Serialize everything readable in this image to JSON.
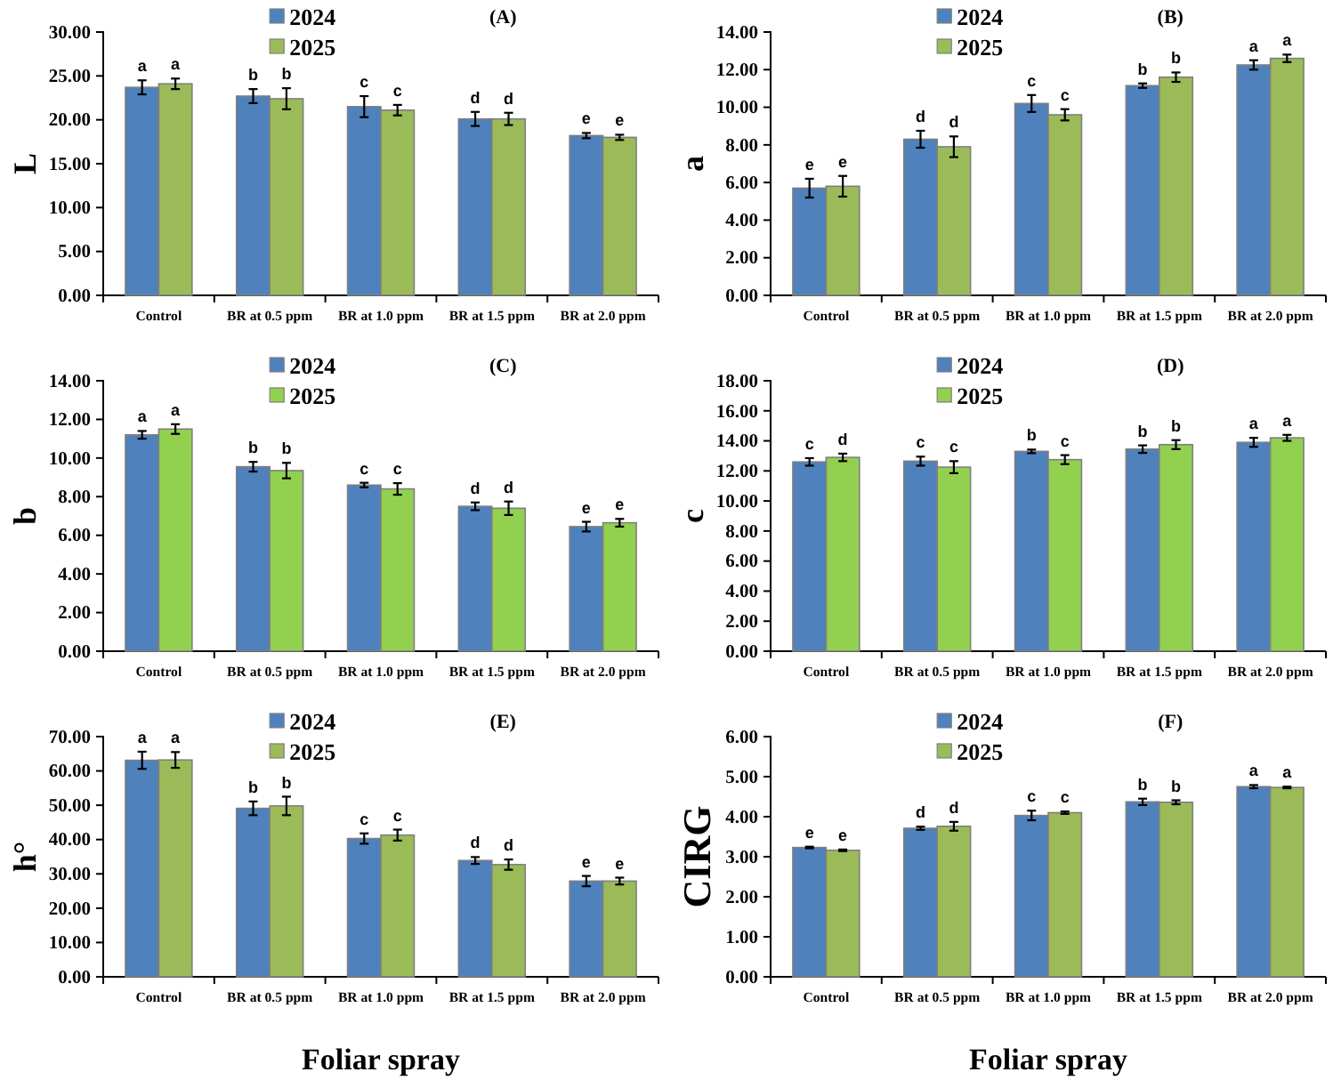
{
  "chart_data": [
    {
      "type": "bar",
      "title": "(A)",
      "ylabel": "L",
      "categories": [
        "Control",
        "BR at 0.5 ppm",
        "BR at 1.0 ppm",
        "BR at 1.5 ppm",
        "BR at 2.0 ppm"
      ],
      "ylim": [
        0,
        30
      ],
      "yticks": [
        {
          "value": 0,
          "label": "0.00"
        },
        {
          "value": 5,
          "label": "5.00"
        },
        {
          "value": 10,
          "label": "10.00"
        },
        {
          "value": 15,
          "label": "15.00"
        },
        {
          "value": 20,
          "label": "20.00"
        },
        {
          "value": 25,
          "label": "25.00"
        },
        {
          "value": 30,
          "label": "30.00"
        }
      ],
      "legend": "top",
      "grid": false,
      "series": [
        {
          "name": "2024",
          "color": "#4f81bd",
          "values": [
            23.7,
            22.7,
            21.5,
            20.1,
            18.2
          ],
          "errors": [
            0.8,
            0.8,
            1.2,
            0.8,
            0.3
          ],
          "value_labels": [
            "a",
            "b",
            "c",
            "d",
            "e"
          ]
        },
        {
          "name": "2025",
          "color": "#9bbb59",
          "values": [
            24.1,
            22.4,
            21.1,
            20.1,
            18.0
          ],
          "errors": [
            0.6,
            1.2,
            0.6,
            0.7,
            0.3
          ],
          "value_labels": [
            "a",
            "b",
            "c",
            "d",
            "e"
          ]
        }
      ]
    },
    {
      "type": "bar",
      "title": "(B)",
      "ylabel": "a",
      "categories": [
        "Control",
        "BR at 0.5 ppm",
        "BR at 1.0 ppm",
        "BR at 1.5 ppm",
        "BR at 2.0 ppm"
      ],
      "ylim": [
        0,
        14
      ],
      "yticks": [
        {
          "value": 0,
          "label": "0.00"
        },
        {
          "value": 2,
          "label": "2.00"
        },
        {
          "value": 4,
          "label": "4.00"
        },
        {
          "value": 6,
          "label": "6.00"
        },
        {
          "value": 8,
          "label": "8.00"
        },
        {
          "value": 10,
          "label": "10.00"
        },
        {
          "value": 12,
          "label": "12.00"
        },
        {
          "value": 14,
          "label": "14.00"
        }
      ],
      "legend": "top",
      "grid": false,
      "series": [
        {
          "name": "2024",
          "color": "#4f81bd",
          "values": [
            5.7,
            8.3,
            10.2,
            11.15,
            12.25
          ],
          "errors": [
            0.5,
            0.45,
            0.45,
            0.12,
            0.25
          ],
          "value_labels": [
            "e",
            "d",
            "c",
            "b",
            "a"
          ]
        },
        {
          "name": "2025",
          "color": "#9bbb59",
          "values": [
            5.8,
            7.9,
            9.6,
            11.6,
            12.6
          ],
          "errors": [
            0.55,
            0.55,
            0.3,
            0.25,
            0.2
          ],
          "value_labels": [
            "e",
            "d",
            "c",
            "b",
            "a"
          ]
        }
      ]
    },
    {
      "type": "bar",
      "title": "(C)",
      "ylabel": "b",
      "categories": [
        "Control",
        "BR at 0.5 ppm",
        "BR at 1.0 ppm",
        "BR at 1.5 ppm",
        "BR at 2.0 ppm"
      ],
      "ylim": [
        0,
        14
      ],
      "yticks": [
        {
          "value": 0,
          "label": "0.00"
        },
        {
          "value": 2,
          "label": "2.00"
        },
        {
          "value": 4,
          "label": "4.00"
        },
        {
          "value": 6,
          "label": "6.00"
        },
        {
          "value": 8,
          "label": "8.00"
        },
        {
          "value": 10,
          "label": "10.00"
        },
        {
          "value": 12,
          "label": "12.00"
        },
        {
          "value": 14,
          "label": "14.00"
        }
      ],
      "legend": "top",
      "grid": false,
      "series": [
        {
          "name": "2024",
          "color": "#4f81bd",
          "values": [
            11.2,
            9.55,
            8.6,
            7.5,
            6.45
          ],
          "errors": [
            0.2,
            0.25,
            0.12,
            0.2,
            0.25
          ],
          "value_labels": [
            "a",
            "b",
            "c",
            "d",
            "e"
          ]
        },
        {
          "name": "2025",
          "color": "#92d050",
          "values": [
            11.5,
            9.35,
            8.4,
            7.4,
            6.65
          ],
          "errors": [
            0.25,
            0.4,
            0.3,
            0.35,
            0.2
          ],
          "value_labels": [
            "a",
            "b",
            "c",
            "d",
            "e"
          ]
        }
      ]
    },
    {
      "type": "bar",
      "title": "(D)",
      "ylabel": "c",
      "categories": [
        "Control",
        "BR at 0.5 ppm",
        "BR at 1.0 ppm",
        "BR at 1.5 ppm",
        "BR at 2.0 ppm"
      ],
      "ylim": [
        0,
        18
      ],
      "yticks": [
        {
          "value": 0,
          "label": "0.00"
        },
        {
          "value": 2,
          "label": "2.00"
        },
        {
          "value": 4,
          "label": "4.00"
        },
        {
          "value": 6,
          "label": "6.00"
        },
        {
          "value": 8,
          "label": "8.00"
        },
        {
          "value": 10,
          "label": "10.00"
        },
        {
          "value": 12,
          "label": "12.00"
        },
        {
          "value": 14,
          "label": "14.00"
        },
        {
          "value": 16,
          "label": "16.00"
        },
        {
          "value": 18,
          "label": "18.00"
        }
      ],
      "legend": "top",
      "grid": false,
      "series": [
        {
          "name": "2024",
          "color": "#4f81bd",
          "values": [
            12.6,
            12.65,
            13.3,
            13.45,
            13.9
          ],
          "errors": [
            0.25,
            0.3,
            0.12,
            0.25,
            0.3
          ],
          "value_labels": [
            "c",
            "c",
            "b",
            "b",
            "a"
          ]
        },
        {
          "name": "2025",
          "color": "#92d050",
          "values": [
            12.9,
            12.25,
            12.75,
            13.75,
            14.2
          ],
          "errors": [
            0.25,
            0.4,
            0.3,
            0.3,
            0.2
          ],
          "value_labels": [
            "d",
            "c",
            "c",
            "b",
            "a"
          ]
        }
      ]
    },
    {
      "type": "bar",
      "title": "(E)",
      "ylabel": "h°",
      "xlabel": "Foliar spray",
      "categories": [
        "Control",
        "BR at 0.5 ppm",
        "BR at 1.0 ppm",
        "BR at 1.5 ppm",
        "BR at 2.0 ppm"
      ],
      "ylim": [
        0,
        70
      ],
      "yticks": [
        {
          "value": 0,
          "label": "0.00"
        },
        {
          "value": 10,
          "label": "10.00"
        },
        {
          "value": 20,
          "label": "20.00"
        },
        {
          "value": 30,
          "label": "30.00"
        },
        {
          "value": 40,
          "label": "40.00"
        },
        {
          "value": 50,
          "label": "50.00"
        },
        {
          "value": 60,
          "label": "60.00"
        },
        {
          "value": 70,
          "label": "70.00"
        }
      ],
      "legend": "top",
      "grid": false,
      "series": [
        {
          "name": "2024",
          "color": "#4f81bd",
          "values": [
            63.1,
            49.1,
            40.3,
            33.9,
            27.9
          ],
          "errors": [
            2.5,
            2.0,
            1.5,
            1.0,
            1.5
          ],
          "value_labels": [
            "a",
            "b",
            "c",
            "d",
            "e"
          ]
        },
        {
          "name": "2025",
          "color": "#9bbb59",
          "values": [
            63.2,
            49.8,
            41.3,
            32.7,
            27.9
          ],
          "errors": [
            2.3,
            2.7,
            1.6,
            1.5,
            1.0
          ],
          "value_labels": [
            "a",
            "b",
            "c",
            "d",
            "e"
          ]
        }
      ]
    },
    {
      "type": "bar",
      "title": "(F)",
      "ylabel": "CIRG",
      "xlabel": "Foliar spray",
      "categories": [
        "Control",
        "BR at 0.5 ppm",
        "BR at 1.0 ppm",
        "BR at 1.5 ppm",
        "BR at 2.0 ppm"
      ],
      "ylim": [
        0,
        6
      ],
      "yticks": [
        {
          "value": 0,
          "label": "0.00"
        },
        {
          "value": 1,
          "label": "1.00"
        },
        {
          "value": 2,
          "label": "2.00"
        },
        {
          "value": 3,
          "label": "3.00"
        },
        {
          "value": 4,
          "label": "4.00"
        },
        {
          "value": 5,
          "label": "5.00"
        },
        {
          "value": 6,
          "label": "6.00"
        }
      ],
      "legend": "top",
      "grid": false,
      "series": [
        {
          "name": "2024",
          "color": "#4f81bd",
          "values": [
            3.23,
            3.71,
            4.03,
            4.37,
            4.75
          ],
          "errors": [
            0.02,
            0.04,
            0.12,
            0.08,
            0.04
          ],
          "value_labels": [
            "e",
            "d",
            "c",
            "b",
            "a"
          ]
        },
        {
          "name": "2025",
          "color": "#9bbb59",
          "values": [
            3.16,
            3.76,
            4.1,
            4.36,
            4.73
          ],
          "errors": [
            0.02,
            0.11,
            0.03,
            0.05,
            0.02
          ],
          "value_labels": [
            "e",
            "d",
            "c",
            "b",
            "a"
          ]
        }
      ]
    }
  ]
}
